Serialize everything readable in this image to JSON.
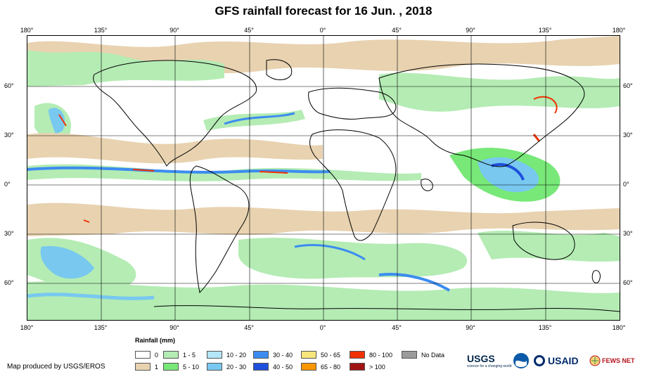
{
  "title": "GFS rainfall forecast for 16 Jun. , 2018",
  "axes": {
    "lon_ticks": [
      "180°",
      "135°",
      "90°",
      "45°",
      "0°",
      "45°",
      "90°",
      "135°",
      "180°"
    ],
    "lat_ticks": [
      "60°",
      "30°",
      "0°",
      "30°",
      "60°"
    ]
  },
  "legend": {
    "title": "Rainfall (mm)",
    "items": [
      {
        "label": "0",
        "color": "#ffffff"
      },
      {
        "label": "1",
        "color": "#e8d2b0"
      },
      {
        "label": "1 - 5",
        "color": "#b4ecb4"
      },
      {
        "label": "5 - 10",
        "color": "#78e878"
      },
      {
        "label": "10 - 20",
        "color": "#b4e6fa"
      },
      {
        "label": "20 - 30",
        "color": "#78c8f0"
      },
      {
        "label": "30 - 40",
        "color": "#3c8cf0"
      },
      {
        "label": "40 - 50",
        "color": "#1e50dc"
      },
      {
        "label": "50 - 65",
        "color": "#f8e67c"
      },
      {
        "label": "65 - 80",
        "color": "#fa9600"
      },
      {
        "label": "80 - 100",
        "color": "#f03200"
      },
      {
        "label": "> 100",
        "color": "#a01414"
      },
      {
        "label": "No Data",
        "color": "#9b9b9b"
      }
    ]
  },
  "credit": "Map produced by USGS/EROS",
  "logos": {
    "usgs": "USGS",
    "usgs_tagline": "science for a changing world",
    "noaa": "noaa-logo",
    "usaid": "USAID",
    "fews": "FEWS NET"
  }
}
